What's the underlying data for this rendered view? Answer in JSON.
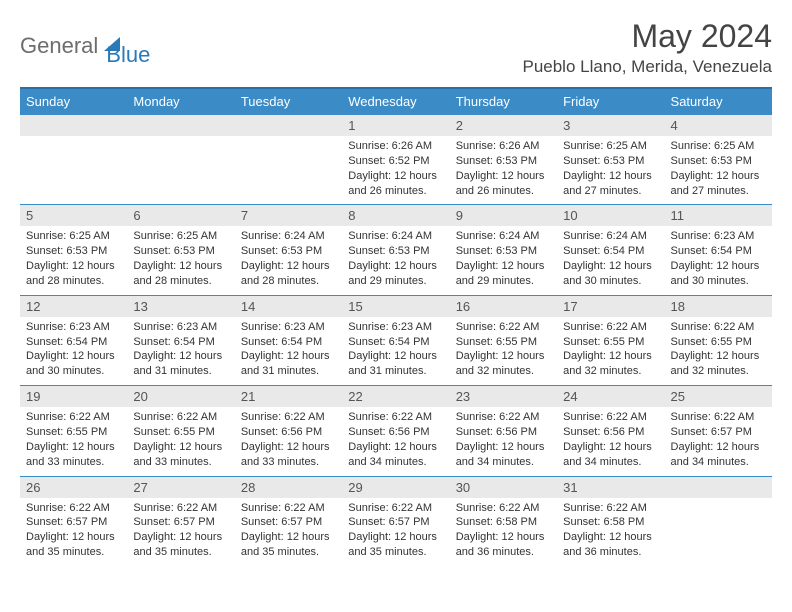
{
  "brand": {
    "part1": "General",
    "part2": "Blue"
  },
  "title": "May 2024",
  "location": "Pueblo Llano, Merida, Venezuela",
  "colors": {
    "header_bg": "#3b8bc7",
    "header_border": "#2a6fa3",
    "daynum_bg": "#e9e9e9",
    "text": "#333333",
    "brand_gray": "#6d6d6d",
    "brand_blue": "#2a7ab8"
  },
  "days": [
    "Sunday",
    "Monday",
    "Tuesday",
    "Wednesday",
    "Thursday",
    "Friday",
    "Saturday"
  ],
  "weeks": [
    [
      null,
      null,
      null,
      {
        "n": "1",
        "sr": "6:26 AM",
        "ss": "6:52 PM",
        "dl": "12 hours and 26 minutes."
      },
      {
        "n": "2",
        "sr": "6:26 AM",
        "ss": "6:53 PM",
        "dl": "12 hours and 26 minutes."
      },
      {
        "n": "3",
        "sr": "6:25 AM",
        "ss": "6:53 PM",
        "dl": "12 hours and 27 minutes."
      },
      {
        "n": "4",
        "sr": "6:25 AM",
        "ss": "6:53 PM",
        "dl": "12 hours and 27 minutes."
      }
    ],
    [
      {
        "n": "5",
        "sr": "6:25 AM",
        "ss": "6:53 PM",
        "dl": "12 hours and 28 minutes."
      },
      {
        "n": "6",
        "sr": "6:25 AM",
        "ss": "6:53 PM",
        "dl": "12 hours and 28 minutes."
      },
      {
        "n": "7",
        "sr": "6:24 AM",
        "ss": "6:53 PM",
        "dl": "12 hours and 28 minutes."
      },
      {
        "n": "8",
        "sr": "6:24 AM",
        "ss": "6:53 PM",
        "dl": "12 hours and 29 minutes."
      },
      {
        "n": "9",
        "sr": "6:24 AM",
        "ss": "6:53 PM",
        "dl": "12 hours and 29 minutes."
      },
      {
        "n": "10",
        "sr": "6:24 AM",
        "ss": "6:54 PM",
        "dl": "12 hours and 30 minutes."
      },
      {
        "n": "11",
        "sr": "6:23 AM",
        "ss": "6:54 PM",
        "dl": "12 hours and 30 minutes."
      }
    ],
    [
      {
        "n": "12",
        "sr": "6:23 AM",
        "ss": "6:54 PM",
        "dl": "12 hours and 30 minutes."
      },
      {
        "n": "13",
        "sr": "6:23 AM",
        "ss": "6:54 PM",
        "dl": "12 hours and 31 minutes."
      },
      {
        "n": "14",
        "sr": "6:23 AM",
        "ss": "6:54 PM",
        "dl": "12 hours and 31 minutes."
      },
      {
        "n": "15",
        "sr": "6:23 AM",
        "ss": "6:54 PM",
        "dl": "12 hours and 31 minutes."
      },
      {
        "n": "16",
        "sr": "6:22 AM",
        "ss": "6:55 PM",
        "dl": "12 hours and 32 minutes."
      },
      {
        "n": "17",
        "sr": "6:22 AM",
        "ss": "6:55 PM",
        "dl": "12 hours and 32 minutes."
      },
      {
        "n": "18",
        "sr": "6:22 AM",
        "ss": "6:55 PM",
        "dl": "12 hours and 32 minutes."
      }
    ],
    [
      {
        "n": "19",
        "sr": "6:22 AM",
        "ss": "6:55 PM",
        "dl": "12 hours and 33 minutes."
      },
      {
        "n": "20",
        "sr": "6:22 AM",
        "ss": "6:55 PM",
        "dl": "12 hours and 33 minutes."
      },
      {
        "n": "21",
        "sr": "6:22 AM",
        "ss": "6:56 PM",
        "dl": "12 hours and 33 minutes."
      },
      {
        "n": "22",
        "sr": "6:22 AM",
        "ss": "6:56 PM",
        "dl": "12 hours and 34 minutes."
      },
      {
        "n": "23",
        "sr": "6:22 AM",
        "ss": "6:56 PM",
        "dl": "12 hours and 34 minutes."
      },
      {
        "n": "24",
        "sr": "6:22 AM",
        "ss": "6:56 PM",
        "dl": "12 hours and 34 minutes."
      },
      {
        "n": "25",
        "sr": "6:22 AM",
        "ss": "6:57 PM",
        "dl": "12 hours and 34 minutes."
      }
    ],
    [
      {
        "n": "26",
        "sr": "6:22 AM",
        "ss": "6:57 PM",
        "dl": "12 hours and 35 minutes."
      },
      {
        "n": "27",
        "sr": "6:22 AM",
        "ss": "6:57 PM",
        "dl": "12 hours and 35 minutes."
      },
      {
        "n": "28",
        "sr": "6:22 AM",
        "ss": "6:57 PM",
        "dl": "12 hours and 35 minutes."
      },
      {
        "n": "29",
        "sr": "6:22 AM",
        "ss": "6:57 PM",
        "dl": "12 hours and 35 minutes."
      },
      {
        "n": "30",
        "sr": "6:22 AM",
        "ss": "6:58 PM",
        "dl": "12 hours and 36 minutes."
      },
      {
        "n": "31",
        "sr": "6:22 AM",
        "ss": "6:58 PM",
        "dl": "12 hours and 36 minutes."
      },
      null
    ]
  ],
  "labels": {
    "sunrise": "Sunrise:",
    "sunset": "Sunset:",
    "daylight": "Daylight:"
  }
}
